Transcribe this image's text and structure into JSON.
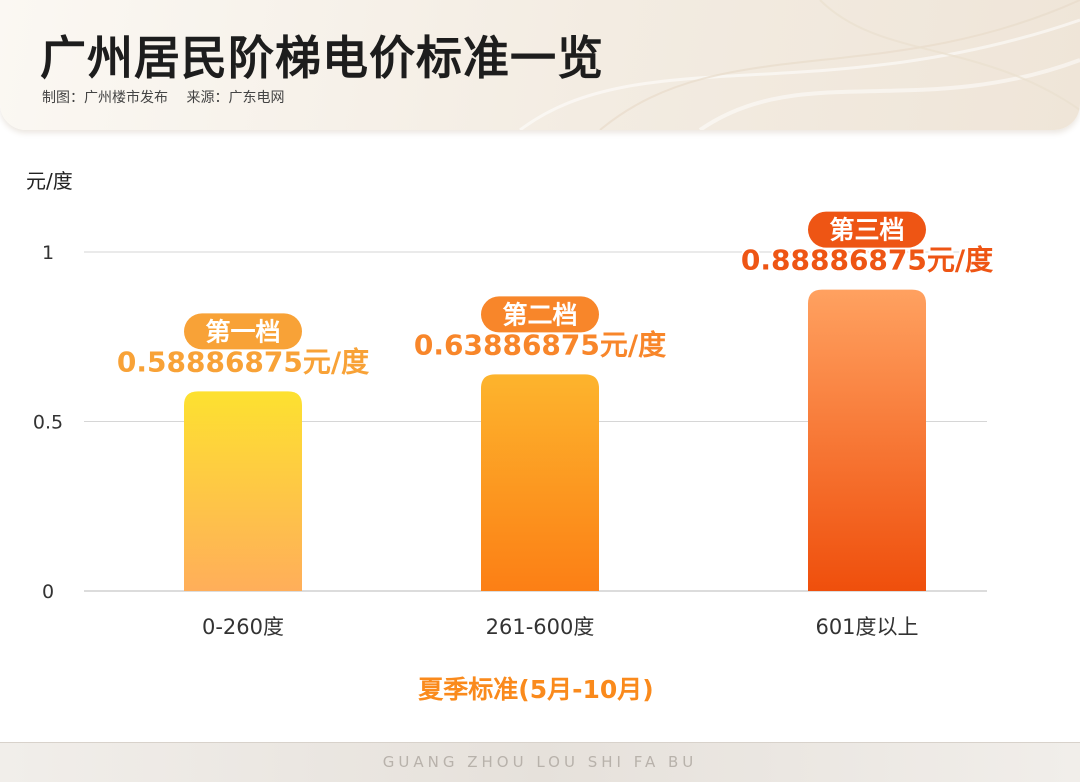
{
  "header": {
    "title": "广州居民阶梯电价标准一览",
    "credit": "制图：广州楼市发布",
    "source": "来源：广东电网"
  },
  "chart_data": {
    "type": "bar",
    "ylabel": "元/度",
    "ylim": [
      0,
      1
    ],
    "yticks": [
      "0",
      "0.5",
      "1"
    ],
    "grid": true,
    "categories": [
      "0-260度",
      "261-600度",
      "601度以上"
    ],
    "values": [
      0.58886875,
      0.63886875,
      0.88886875
    ],
    "tier_labels": [
      "第一档",
      "第二档",
      "第三档"
    ],
    "value_labels": [
      "0.58886875元/度",
      "0.63886875元/度",
      "0.88886875元/度"
    ],
    "xlabel": "夏季标准(5月-10月)"
  },
  "colors": {
    "tier1": [
      "#fde130",
      "#ffae5a"
    ],
    "tier2": [
      "#fdb42d",
      "#fc7f15"
    ],
    "tier3": [
      "#ffa160",
      "#ef4f0c"
    ],
    "label1": "#f8a237",
    "label2": "#f8862a",
    "label3": "#ee5514"
  },
  "footer": {
    "text": "GUANG ZHOU LOU SHI FA BU"
  }
}
